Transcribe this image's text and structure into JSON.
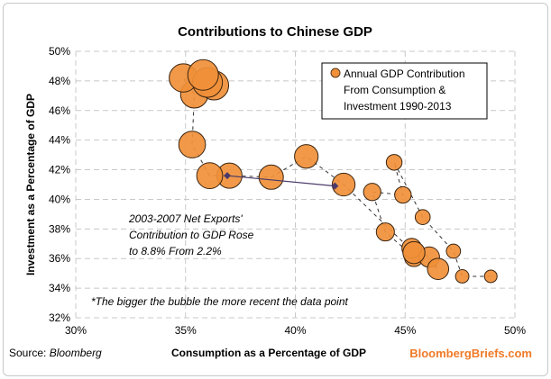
{
  "chart_data": {
    "type": "scatter",
    "title": "Contributions to Chinese GDP",
    "xlabel": "Consumption  as a Percentage of GDP",
    "ylabel": "Investment as a Percentage of GDP",
    "xlim": [
      30,
      50
    ],
    "ylim": [
      32,
      50
    ],
    "xticks": [
      "30%",
      "35%",
      "40%",
      "45%",
      "50%"
    ],
    "yticks": [
      "32%",
      "34%",
      "36%",
      "38%",
      "40%",
      "42%",
      "44%",
      "46%",
      "48%",
      "50%"
    ],
    "grid": true,
    "legend_position": "top-right",
    "legend": [
      "Annual GDP Contribution",
      "From Consumption &",
      "Investment 1990-2013"
    ],
    "bubble_color": "#f0903a",
    "series": [
      {
        "name": "Annual GDP Contribution From Consumption & Investment 1990-2013",
        "points": [
          [
            48.9,
            34.8
          ],
          [
            47.6,
            34.8
          ],
          [
            47.2,
            36.5
          ],
          [
            45.8,
            38.8
          ],
          [
            44.5,
            42.5
          ],
          [
            44.9,
            40.3
          ],
          [
            43.5,
            40.5
          ],
          [
            44.1,
            37.8
          ],
          [
            45.4,
            36.1
          ],
          [
            45.3,
            36.7
          ],
          [
            46.1,
            36.1
          ],
          [
            46.5,
            35.3
          ],
          [
            45.4,
            36.4
          ],
          [
            42.2,
            41.0
          ],
          [
            40.5,
            42.9
          ],
          [
            38.9,
            41.5
          ],
          [
            37.0,
            41.6
          ],
          [
            36.1,
            41.6
          ],
          [
            35.3,
            43.7
          ],
          [
            35.4,
            47.1
          ],
          [
            34.9,
            48.2
          ],
          [
            36.3,
            47.7
          ],
          [
            36.0,
            47.9
          ],
          [
            35.8,
            48.4
          ]
        ]
      }
    ],
    "net_exports_markers": [
      [
        36.9,
        41.6
      ],
      [
        41.8,
        40.9
      ]
    ],
    "annotations": [
      "2003-2007  Net Exports'",
      "Contribution to GDP Rose",
      "to 8.8% From 2.2%",
      "*The bigger the bubble the more recent the data point"
    ]
  },
  "source_label": "Source: ",
  "source_name": "Bloomberg",
  "brand": "BloombergBriefs.com",
  "brand_color": "#f07a28"
}
